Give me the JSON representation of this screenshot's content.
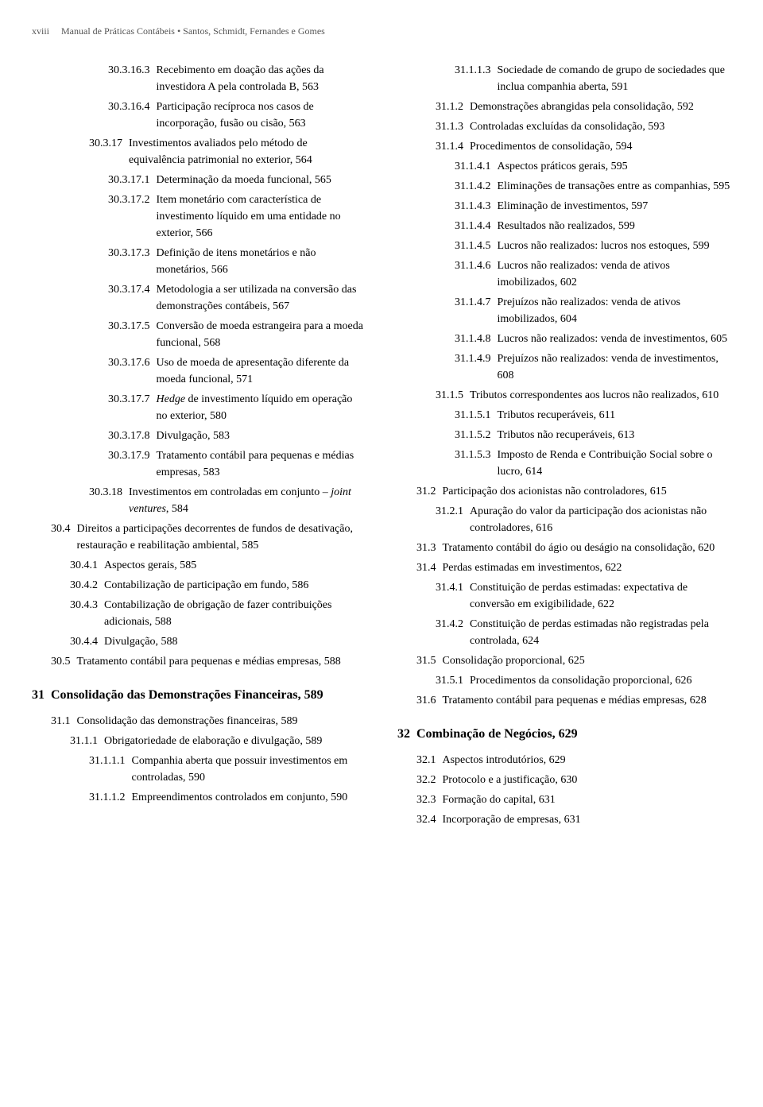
{
  "header": {
    "pagenum": "xviii",
    "title": "Manual de Práticas Contábeis • Santos, Schmidt, Fernandes e Gomes"
  },
  "left": [
    {
      "lvl": 5,
      "num": "30.3.16.3",
      "txt": "Recebimento em doação das ações da investidora A pela controlada B, 563"
    },
    {
      "lvl": 5,
      "num": "30.3.16.4",
      "txt": "Participação recíproca nos casos de incorporação, fusão ou cisão, 563"
    },
    {
      "lvl": 4,
      "num": "30.3.17",
      "txt": "Investimentos avaliados pelo método de equivalência patrimonial no exterior, 564"
    },
    {
      "lvl": 5,
      "num": "30.3.17.1",
      "txt": "Determinação da moeda funcional, 565"
    },
    {
      "lvl": 5,
      "num": "30.3.17.2",
      "txt": "Item monetário com característica de investimento líquido em uma entidade no exterior, 566"
    },
    {
      "lvl": 5,
      "num": "30.3.17.3",
      "txt": "Definição de itens monetários e não monetários, 566"
    },
    {
      "lvl": 5,
      "num": "30.3.17.4",
      "txt": "Metodologia a ser utilizada na conversão das demonstrações contábeis, 567"
    },
    {
      "lvl": 5,
      "num": "30.3.17.5",
      "txt": "Conversão de moeda estrangeira para a moeda funcional, 568"
    },
    {
      "lvl": 5,
      "num": "30.3.17.6",
      "txt": "Uso de moeda de apresentação diferente da moeda funcional, 571"
    },
    {
      "lvl": 5,
      "num": "30.3.17.7",
      "txt": "<em>Hedge</em> de investimento líquido em operação no exterior, 580"
    },
    {
      "lvl": 5,
      "num": "30.3.17.8",
      "txt": "Divulgação, 583"
    },
    {
      "lvl": 5,
      "num": "30.3.17.9",
      "txt": "Tratamento contábil para pequenas e médias empresas, 583"
    },
    {
      "lvl": 4,
      "num": "30.3.18",
      "txt": "Investimentos em controladas em conjunto – <em>joint ventures</em>, 584"
    },
    {
      "lvl": 2,
      "num": "30.4",
      "txt": "Direitos a participações decorrentes de fundos de desativação, restauração e reabilitação ambiental, 585"
    },
    {
      "lvl": 3,
      "num": "30.4.1",
      "txt": "Aspectos gerais, 585"
    },
    {
      "lvl": 3,
      "num": "30.4.2",
      "txt": "Contabilização de participação em fundo, 586"
    },
    {
      "lvl": 3,
      "num": "30.4.3",
      "txt": "Contabilização de obrigação de fazer contribuições adicionais, 588"
    },
    {
      "lvl": 3,
      "num": "30.4.4",
      "txt": "Divulgação, 588"
    },
    {
      "lvl": 2,
      "num": "30.5",
      "txt": "Tratamento contábil para pequenas e médias empresas, 588"
    },
    {
      "lvl": 1,
      "num": "31",
      "txt": "Consolidação das Demonstrações Financeiras, 589",
      "chapter": true
    },
    {
      "lvl": 2,
      "num": "31.1",
      "txt": "Consolidação das demonstrações financeiras, 589"
    },
    {
      "lvl": 3,
      "num": "31.1.1",
      "txt": "Obrigatoriedade de elaboração e divulgação, 589"
    },
    {
      "lvl": 4,
      "num": "31.1.1.1",
      "txt": "Companhia aberta que possuir investimentos em controladas, 590"
    },
    {
      "lvl": 4,
      "num": "31.1.1.2",
      "txt": "Empreendimentos controlados em conjunto, 590"
    }
  ],
  "right": [
    {
      "lvl": 4,
      "num": "31.1.1.3",
      "txt": "Sociedade de comando de grupo de sociedades que inclua companhia aberta, 591"
    },
    {
      "lvl": 3,
      "num": "31.1.2",
      "txt": "Demonstrações abrangidas pela consolidação, 592"
    },
    {
      "lvl": 3,
      "num": "31.1.3",
      "txt": "Controladas excluídas da consolidação, 593"
    },
    {
      "lvl": 3,
      "num": "31.1.4",
      "txt": "Procedimentos de consolidação, 594"
    },
    {
      "lvl": 4,
      "num": "31.1.4.1",
      "txt": "Aspectos práticos gerais, 595"
    },
    {
      "lvl": 4,
      "num": "31.1.4.2",
      "txt": "Eliminações de transações entre as companhias, 595"
    },
    {
      "lvl": 4,
      "num": "31.1.4.3",
      "txt": "Eliminação de investimentos, 597"
    },
    {
      "lvl": 4,
      "num": "31.1.4.4",
      "txt": "Resultados não realizados, 599"
    },
    {
      "lvl": 4,
      "num": "31.1.4.5",
      "txt": "Lucros não realizados: lucros nos estoques, 599"
    },
    {
      "lvl": 4,
      "num": "31.1.4.6",
      "txt": "Lucros não realizados: venda de ativos imobilizados, 602"
    },
    {
      "lvl": 4,
      "num": "31.1.4.7",
      "txt": "Prejuízos não realizados: venda de ativos imobilizados, 604"
    },
    {
      "lvl": 4,
      "num": "31.1.4.8",
      "txt": "Lucros não realizados: venda de investimentos, 605"
    },
    {
      "lvl": 4,
      "num": "31.1.4.9",
      "txt": "Prejuízos não realizados: venda de investimentos, 608"
    },
    {
      "lvl": 3,
      "num": "31.1.5",
      "txt": "Tributos correspondentes aos lucros não realizados, 610"
    },
    {
      "lvl": 4,
      "num": "31.1.5.1",
      "txt": "Tributos recuperáveis, 611"
    },
    {
      "lvl": 4,
      "num": "31.1.5.2",
      "txt": "Tributos não recuperáveis, 613"
    },
    {
      "lvl": 4,
      "num": "31.1.5.3",
      "txt": "Imposto de Renda e Contribuição Social sobre o lucro, 614"
    },
    {
      "lvl": 2,
      "num": "31.2",
      "txt": "Participação dos acionistas não controladores, 615"
    },
    {
      "lvl": 3,
      "num": "31.2.1",
      "txt": "Apuração do valor da participação dos acionistas não controladores, 616"
    },
    {
      "lvl": 2,
      "num": "31.3",
      "txt": "Tratamento contábil do ágio ou deságio na consolidação, 620"
    },
    {
      "lvl": 2,
      "num": "31.4",
      "txt": "Perdas estimadas em investimentos, 622"
    },
    {
      "lvl": 3,
      "num": "31.4.1",
      "txt": "Constituição de perdas estimadas: expectativa de conversão em exigibilidade, 622"
    },
    {
      "lvl": 3,
      "num": "31.4.2",
      "txt": "Constituição de perdas estimadas não registradas pela controlada, 624"
    },
    {
      "lvl": 2,
      "num": "31.5",
      "txt": "Consolidação proporcional, 625"
    },
    {
      "lvl": 3,
      "num": "31.5.1",
      "txt": "Procedimentos da consolidação proporcional, 626"
    },
    {
      "lvl": 2,
      "num": "31.6",
      "txt": "Tratamento contábil para pequenas e médias empresas, 628"
    },
    {
      "lvl": 1,
      "num": "32",
      "txt": "Combinação de Negócios, 629",
      "chapter": true
    },
    {
      "lvl": 2,
      "num": "32.1",
      "txt": "Aspectos introdutórios, 629"
    },
    {
      "lvl": 2,
      "num": "32.2",
      "txt": "Protocolo e a justificação, 630"
    },
    {
      "lvl": 2,
      "num": "32.3",
      "txt": "Formação do capital, 631"
    },
    {
      "lvl": 2,
      "num": "32.4",
      "txt": "Incorporação de empresas, 631"
    }
  ]
}
